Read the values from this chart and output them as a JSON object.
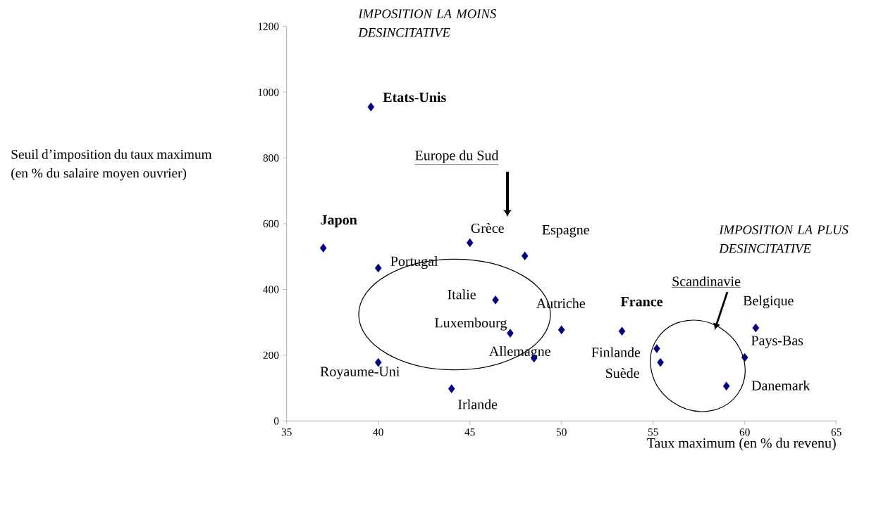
{
  "chart_data": {
    "type": "scatter",
    "xlabel": "Taux maximum (en % du revenu)",
    "ylabel": "Seuil d’imposition du taux maximum (en % du salaire moyen ouvrier)",
    "x": [
      39.6,
      37,
      45,
      48,
      40,
      46.4,
      50,
      47.2,
      48.5,
      40,
      44,
      53.3,
      55.2,
      55.4,
      60.6,
      60,
      59
    ],
    "values": [
      955,
      526,
      542,
      502,
      465,
      368,
      277,
      267,
      191,
      178,
      98,
      273,
      220,
      178,
      283,
      193,
      106
    ],
    "color": "#000080",
    "marker": "diamond",
    "xlim": [
      35,
      65
    ],
    "xticks": [
      35,
      40,
      45,
      50,
      55,
      60,
      65
    ],
    "ylim": [
      0,
      1200
    ],
    "yticks": [
      0,
      200,
      400,
      600,
      800,
      1000,
      1200
    ],
    "grid": false,
    "annotations": [
      {
        "text": "**Etats-Unis**",
        "x": 39.6,
        "y": 955
      },
      {
        "text": "**Japon**",
        "x": 37,
        "y": 526
      },
      {
        "text": "Grèce",
        "x": 45,
        "y": 542
      },
      {
        "text": "Espagne",
        "x": 48,
        "y": 502
      },
      {
        "text": "Portugal",
        "x": 40,
        "y": 465
      },
      {
        "text": "Italie",
        "x": 46.4,
        "y": 368
      },
      {
        "text": "Autriche",
        "x": 50,
        "y": 277
      },
      {
        "text": "Luxembourg",
        "x": 47.2,
        "y": 267
      },
      {
        "text": "Allemagne",
        "x": 48.5,
        "y": 191
      },
      {
        "text": "Royaume-Uni",
        "x": 40,
        "y": 178
      },
      {
        "text": "Irlande",
        "x": 44,
        "y": 98
      },
      {
        "text": "**France**",
        "x": 53.3,
        "y": 273
      },
      {
        "text": "Finlande",
        "x": 55.2,
        "y": 220
      },
      {
        "text": "Suède",
        "x": 55.4,
        "y": 178
      },
      {
        "text": "Belgique",
        "x": 60.6,
        "y": 283
      },
      {
        "text": "Pays-Bas",
        "x": 60,
        "y": 193
      },
      {
        "text": "Danemark",
        "x": 59,
        "y": 106
      },
      "IMPOSITION LA MOINS DESINCITATIVE",
      "Europe du Sud",
      "IMPOSITION LA PLUS DESINCITATIVE",
      "Scandinavie"
    ]
  }
}
